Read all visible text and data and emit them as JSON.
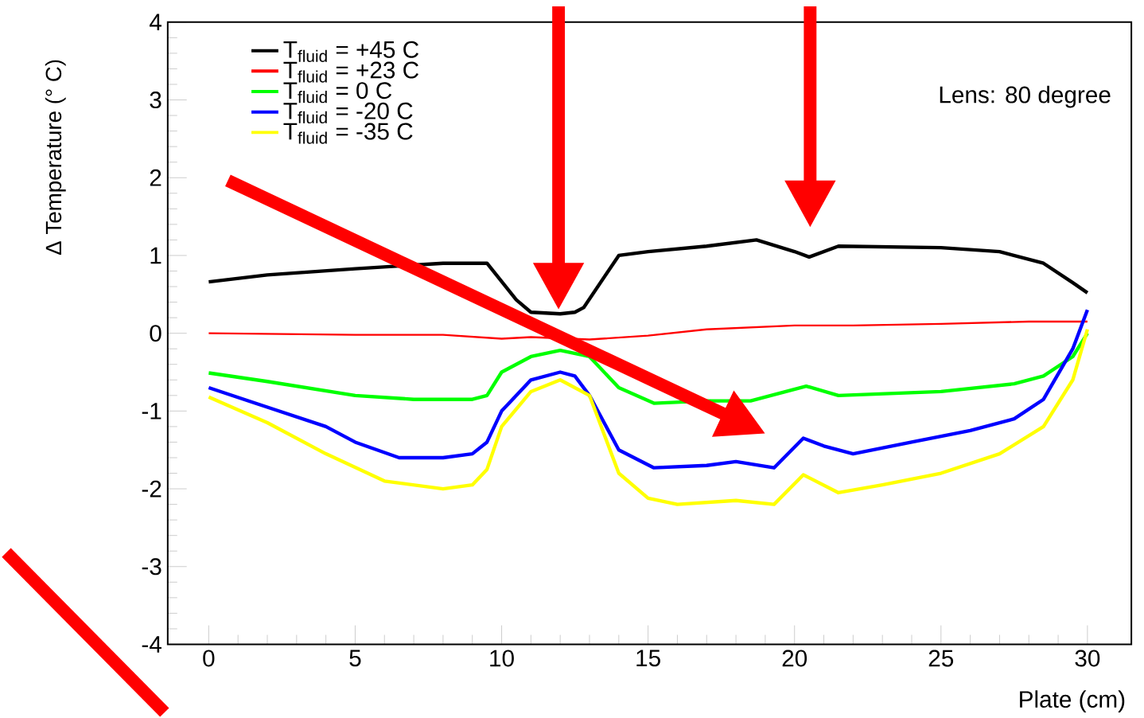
{
  "chart_data": {
    "type": "line",
    "xlabel": "Plate (cm)",
    "ylabel": "Δ Temperature (° C)",
    "xlim": [
      -1.4,
      31.5
    ],
    "ylim": [
      -4,
      4
    ],
    "xticks": [
      0,
      5,
      10,
      15,
      20,
      25,
      30
    ],
    "yticks": [
      -4,
      -3,
      -2,
      -1,
      0,
      1,
      2,
      3,
      4
    ],
    "legend": "top left",
    "annotations": [
      "Lens: 80 degree"
    ],
    "series": [
      {
        "name": "T$_{fluid}$ = +45 C",
        "color": "#000000",
        "x": [
          0,
          2,
          5,
          8,
          9.5,
          10.5,
          11,
          12,
          12.5,
          12.8,
          14,
          15,
          17,
          18.7,
          20,
          20.5,
          21.5,
          25,
          27,
          28.5,
          29.5,
          30
        ],
        "values": [
          0.66,
          0.75,
          0.83,
          0.9,
          0.9,
          0.43,
          0.27,
          0.25,
          0.27,
          0.33,
          1.0,
          1.05,
          1.12,
          1.2,
          1.05,
          0.98,
          1.12,
          1.1,
          1.05,
          0.9,
          0.65,
          0.52
        ]
      },
      {
        "name": "T$_{fluid}$ = +23 C",
        "color": "#ff0000",
        "x": [
          0,
          5,
          8,
          10,
          11,
          13,
          15,
          17,
          20,
          22,
          25,
          28,
          30
        ],
        "values": [
          0.0,
          -0.02,
          -0.02,
          -0.07,
          -0.05,
          -0.08,
          -0.03,
          0.05,
          0.1,
          0.1,
          0.12,
          0.15,
          0.15
        ]
      },
      {
        "name": "T$_{fluid}$ = 0 C",
        "color": "#00ff00",
        "x": [
          0,
          2,
          5,
          7,
          9,
          9.5,
          10,
          11,
          12,
          13,
          14,
          15.2,
          17,
          18.5,
          20.4,
          21.5,
          25,
          27.5,
          28.5,
          29.5,
          30
        ],
        "values": [
          -0.51,
          -0.62,
          -0.8,
          -0.85,
          -0.85,
          -0.8,
          -0.5,
          -0.3,
          -0.22,
          -0.3,
          -0.7,
          -0.9,
          -0.87,
          -0.87,
          -0.68,
          -0.8,
          -0.75,
          -0.65,
          -0.55,
          -0.3,
          0.0
        ]
      },
      {
        "name": "T$_{fluid}$ = -20 C",
        "color": "#0000ff",
        "x": [
          0,
          2,
          4,
          5,
          6.5,
          8,
          9,
          9.5,
          10,
          11,
          12,
          12.5,
          13,
          14,
          15.2,
          17,
          18,
          19.3,
          20.3,
          21,
          22,
          24,
          26,
          27.5,
          28.5,
          29.5,
          30
        ],
        "values": [
          -0.7,
          -0.95,
          -1.2,
          -1.4,
          -1.6,
          -1.6,
          -1.55,
          -1.4,
          -1.0,
          -0.6,
          -0.5,
          -0.55,
          -0.8,
          -1.5,
          -1.73,
          -1.7,
          -1.65,
          -1.73,
          -1.35,
          -1.45,
          -1.55,
          -1.4,
          -1.25,
          -1.1,
          -0.85,
          -0.2,
          0.3
        ]
      },
      {
        "name": "T$_{fluid}$ = -35 C",
        "color": "#ffff00",
        "x": [
          0,
          2,
          4,
          6,
          8,
          9,
          9.5,
          10,
          11,
          12,
          13,
          14,
          15,
          16,
          18,
          19.3,
          20.3,
          21.5,
          23,
          25,
          27,
          28.5,
          29.5,
          30
        ],
        "values": [
          -0.82,
          -1.15,
          -1.55,
          -1.9,
          -2.0,
          -1.95,
          -1.75,
          -1.2,
          -0.75,
          -0.6,
          -0.8,
          -1.8,
          -2.12,
          -2.2,
          -2.15,
          -2.2,
          -1.82,
          -2.05,
          -1.95,
          -1.8,
          -1.55,
          -1.2,
          -0.6,
          0.05
        ]
      }
    ]
  }
}
